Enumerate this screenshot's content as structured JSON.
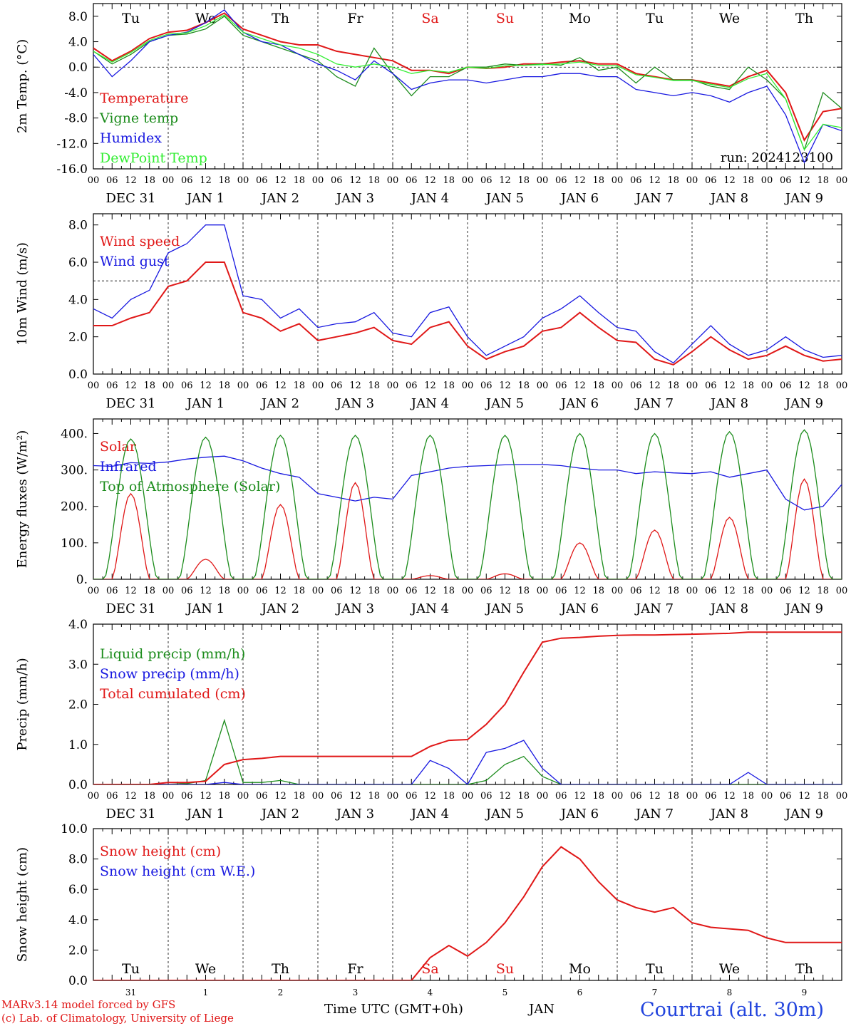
{
  "chart_data": [
    {
      "type": "line",
      "ylabel": "2m Temp. (°C)",
      "ylim": [
        -16,
        10
      ],
      "yticks": [
        "8.0",
        "4.0",
        "0.0",
        "-4.0",
        "-8.0",
        "-12.0",
        "-16.0"
      ],
      "ytick_values": [
        8,
        4,
        0,
        -4,
        -8,
        -12,
        -16
      ],
      "reference_line": 0,
      "weekday_labels": [
        "Tu",
        "We",
        "Th",
        "Fr",
        "Sa",
        "Su",
        "Mo",
        "Tu",
        "We",
        "Th"
      ],
      "weekday_colors": [
        "#000000",
        "#000000",
        "#000000",
        "#000000",
        "#e01818",
        "#e01818",
        "#000000",
        "#000000",
        "#000000",
        "#000000"
      ],
      "annotation": "run: 2024123100",
      "legend_position": "top-left",
      "x_hours": [
        0,
        6,
        12,
        18,
        24,
        30,
        36,
        42,
        48,
        54,
        60,
        66,
        72,
        78,
        84,
        90,
        96,
        102,
        108,
        114,
        120,
        126,
        132,
        138,
        144,
        150,
        156,
        162,
        168,
        174,
        180,
        186,
        192,
        198,
        204,
        210,
        216,
        222,
        228,
        234,
        240
      ],
      "series": [
        {
          "name": "Temperature",
          "color": "#e01818",
          "values": [
            3.0,
            1.0,
            2.5,
            4.5,
            5.5,
            5.8,
            7.0,
            8.5,
            6.0,
            5.0,
            4.0,
            3.5,
            3.5,
            2.5,
            2.0,
            1.5,
            1.0,
            -0.5,
            -0.5,
            -1.0,
            0.0,
            -0.2,
            0.0,
            0.5,
            0.5,
            0.8,
            1.0,
            0.5,
            0.5,
            -1.0,
            -1.5,
            -2.0,
            -2.0,
            -2.5,
            -3.0,
            -1.5,
            -0.5,
            -4.0,
            -11.5,
            -7.0,
            -6.5
          ]
        },
        {
          "name": "Vigne temp",
          "color": "#1c8c1c",
          "values": [
            2.5,
            0.5,
            2.0,
            4.0,
            5.0,
            5.2,
            6.0,
            8.0,
            5.0,
            4.0,
            3.0,
            2.0,
            1.0,
            -1.5,
            -3.0,
            3.0,
            -1.0,
            -4.5,
            -1.5,
            -1.5,
            0.0,
            0.0,
            0.5,
            0.3,
            0.5,
            0.3,
            1.5,
            -0.5,
            0.0,
            -2.5,
            0.0,
            -2.0,
            -2.0,
            -3.0,
            -3.5,
            0.0,
            -2.0,
            -5.0,
            -13.0,
            -4.0,
            -6.5
          ]
        },
        {
          "name": "Humidex",
          "color": "#1818e0",
          "values": [
            2.0,
            -1.5,
            1.0,
            4.0,
            5.0,
            5.5,
            7.0,
            9.0,
            5.5,
            4.0,
            3.5,
            2.0,
            0.5,
            -0.5,
            -2.0,
            1.0,
            -1.0,
            -3.5,
            -2.5,
            -2.0,
            -2.0,
            -2.5,
            -2.0,
            -1.5,
            -1.5,
            -1.0,
            -1.0,
            -1.5,
            -1.5,
            -3.5,
            -4.0,
            -4.5,
            -4.0,
            -4.5,
            -5.5,
            -4.0,
            -3.0,
            -7.5,
            -15.0,
            -9.0,
            -10.0
          ]
        },
        {
          "name": "DewPoint Temp",
          "color": "#33ee33",
          "values": [
            2.5,
            0.8,
            2.3,
            4.2,
            5.2,
            5.4,
            6.5,
            8.2,
            5.5,
            4.5,
            3.5,
            3.0,
            2.0,
            0.5,
            0.0,
            0.5,
            0.0,
            -1.0,
            -0.5,
            -0.8,
            0.0,
            -0.2,
            0.2,
            0.3,
            0.4,
            0.5,
            0.8,
            0.3,
            0.2,
            -1.2,
            -1.6,
            -2.1,
            -2.1,
            -2.7,
            -3.2,
            -1.8,
            -1.0,
            -5.0,
            -13.0,
            -9.0,
            -9.5
          ]
        }
      ]
    },
    {
      "type": "line",
      "ylabel": "10m Wind (m/s)",
      "ylim": [
        0,
        8.6
      ],
      "yticks": [
        "8.0",
        "6.0",
        "4.0",
        "2.0",
        "0.0"
      ],
      "ytick_values": [
        8,
        6,
        4,
        2,
        0
      ],
      "reference_line": 5,
      "legend_position": "top-left",
      "x_hours": [
        0,
        6,
        12,
        18,
        24,
        30,
        36,
        42,
        48,
        54,
        60,
        66,
        72,
        78,
        84,
        90,
        96,
        102,
        108,
        114,
        120,
        126,
        132,
        138,
        144,
        150,
        156,
        162,
        168,
        174,
        180,
        186,
        192,
        198,
        204,
        210,
        216,
        222,
        228,
        234,
        240
      ],
      "series": [
        {
          "name": "Wind speed",
          "color": "#e01818",
          "values": [
            2.6,
            2.6,
            3.0,
            3.3,
            4.7,
            5.0,
            6.0,
            6.0,
            3.3,
            3.0,
            2.3,
            2.7,
            1.8,
            2.0,
            2.2,
            2.5,
            1.8,
            1.6,
            2.5,
            2.8,
            1.5,
            0.8,
            1.2,
            1.5,
            2.3,
            2.5,
            3.3,
            2.5,
            1.8,
            1.7,
            0.8,
            0.5,
            1.2,
            2.0,
            1.3,
            0.8,
            1.0,
            1.5,
            1.0,
            0.7,
            0.8
          ]
        },
        {
          "name": "Wind gust",
          "color": "#1818e0",
          "values": [
            3.5,
            3.0,
            4.0,
            4.5,
            6.5,
            7.0,
            8.0,
            8.0,
            4.2,
            4.0,
            3.0,
            3.5,
            2.5,
            2.7,
            2.8,
            3.3,
            2.2,
            2.0,
            3.3,
            3.6,
            2.0,
            1.0,
            1.5,
            2.0,
            3.0,
            3.5,
            4.2,
            3.3,
            2.5,
            2.3,
            1.2,
            0.6,
            1.6,
            2.6,
            1.6,
            1.0,
            1.3,
            2.0,
            1.3,
            0.9,
            1.0
          ]
        }
      ]
    },
    {
      "type": "line",
      "ylabel": "Energy fluxes (W/m²)",
      "ylim": [
        0,
        440
      ],
      "yticks": [
        "400.",
        "300.",
        "200.",
        "100.",
        "0."
      ],
      "ytick_values": [
        400,
        300,
        200,
        100,
        0
      ],
      "legend_position": "top-left",
      "daily_peaks_solar": [
        235,
        55,
        205,
        265,
        10,
        15,
        100,
        135,
        170,
        275
      ],
      "daily_peaks_toa": [
        385,
        390,
        395,
        395,
        395,
        395,
        400,
        400,
        405,
        410
      ],
      "x_hours": [
        0,
        6,
        12,
        18,
        24,
        30,
        36,
        42,
        48,
        54,
        60,
        66,
        72,
        78,
        84,
        90,
        96,
        102,
        108,
        114,
        120,
        126,
        132,
        138,
        144,
        150,
        156,
        162,
        168,
        174,
        180,
        186,
        192,
        198,
        204,
        210,
        216,
        222,
        228,
        234,
        240
      ],
      "series": [
        {
          "name": "Solar",
          "color": "#e01818"
        },
        {
          "name": "Infrared",
          "color": "#1818e0",
          "values": [
            312,
            310,
            320,
            318,
            322,
            330,
            335,
            338,
            325,
            305,
            290,
            280,
            235,
            225,
            215,
            225,
            220,
            285,
            295,
            305,
            310,
            312,
            314,
            315,
            315,
            312,
            305,
            300,
            300,
            290,
            295,
            292,
            290,
            295,
            280,
            290,
            300,
            220,
            190,
            200,
            260
          ]
        },
        {
          "name": "Top of Atmosphere (Solar)",
          "color": "#1c8c1c"
        }
      ]
    },
    {
      "type": "line",
      "ylabel": "Precip (mm/h)",
      "ylim": [
        0,
        4
      ],
      "yticks": [
        "4.0",
        "3.0",
        "2.0",
        "1.0",
        "0.0"
      ],
      "ytick_values": [
        4,
        3,
        2,
        1,
        0
      ],
      "legend_position": "top-left",
      "x_hours": [
        0,
        6,
        12,
        18,
        24,
        30,
        36,
        42,
        48,
        54,
        60,
        66,
        72,
        78,
        84,
        90,
        96,
        102,
        108,
        114,
        120,
        126,
        132,
        138,
        144,
        150,
        156,
        162,
        168,
        174,
        180,
        186,
        192,
        198,
        204,
        210,
        216,
        222,
        228,
        234,
        240
      ],
      "series": [
        {
          "name": "Liquid precip (mm/h)",
          "color": "#1c8c1c",
          "values": [
            0,
            0,
            0,
            0,
            0.05,
            0.02,
            0.1,
            1.6,
            0.05,
            0.05,
            0.1,
            0,
            0,
            0,
            0,
            0,
            0,
            0,
            0,
            0,
            0,
            0.1,
            0.5,
            0.7,
            0.2,
            0,
            0,
            0,
            0,
            0,
            0,
            0,
            0,
            0,
            0,
            0,
            0,
            0,
            0,
            0,
            0
          ]
        },
        {
          "name": "Snow precip (mm/h)",
          "color": "#1818e0",
          "values": [
            0,
            0,
            0,
            0,
            0,
            0,
            0,
            0.05,
            0,
            0,
            0,
            0,
            0,
            0,
            0,
            0,
            0,
            0,
            0.6,
            0.4,
            0,
            0.8,
            0.9,
            1.1,
            0.4,
            0,
            0,
            0,
            0,
            0,
            0,
            0,
            0,
            0,
            0,
            0.3,
            0,
            0,
            0,
            0,
            0
          ]
        },
        {
          "name": "Total cumulated (cm)",
          "color": "#e01818",
          "values": [
            0,
            0,
            0,
            0,
            0.05,
            0.05,
            0.08,
            0.5,
            0.62,
            0.65,
            0.7,
            0.7,
            0.7,
            0.7,
            0.7,
            0.7,
            0.7,
            0.7,
            0.95,
            1.1,
            1.12,
            1.5,
            2.0,
            2.8,
            3.55,
            3.65,
            3.67,
            3.7,
            3.72,
            3.73,
            3.73,
            3.74,
            3.75,
            3.76,
            3.77,
            3.8,
            3.8,
            3.8,
            3.8,
            3.8,
            3.8
          ]
        }
      ]
    },
    {
      "type": "line",
      "ylabel": "Snow height (cm)",
      "ylim": [
        0,
        10
      ],
      "yticks": [
        "10.0",
        "8.0",
        "6.0",
        "4.0",
        "2.0",
        "0.0"
      ],
      "ytick_values": [
        10,
        8,
        6,
        4,
        2,
        0
      ],
      "legend_position": "top-left",
      "day_numbers": [
        "31",
        "1",
        "2",
        "3",
        "4",
        "5",
        "6",
        "7",
        "8",
        "9"
      ],
      "x_hours": [
        0,
        6,
        12,
        18,
        24,
        30,
        36,
        42,
        48,
        54,
        60,
        66,
        72,
        78,
        84,
        90,
        96,
        102,
        108,
        114,
        120,
        126,
        132,
        138,
        144,
        150,
        156,
        162,
        168,
        174,
        180,
        186,
        192,
        198,
        204,
        210,
        216,
        222,
        228,
        234,
        240
      ],
      "series": [
        {
          "name": "Snow height (cm)",
          "color": "#e01818",
          "values": [
            0,
            0,
            0,
            0,
            0,
            0,
            0,
            0,
            0,
            0,
            0,
            0,
            0,
            0,
            0,
            0,
            0,
            0,
            1.5,
            2.3,
            1.6,
            2.5,
            3.8,
            5.5,
            7.5,
            8.8,
            8.0,
            6.5,
            5.3,
            4.8,
            4.5,
            4.8,
            3.8,
            3.5,
            3.4,
            3.3,
            2.8,
            2.5,
            2.5,
            2.5,
            2.5
          ]
        },
        {
          "name": "Snow height (cm W.E.)",
          "color": "#1818e0"
        }
      ]
    }
  ],
  "x_axis": {
    "hour_ticks": [
      "00",
      "06",
      "12",
      "18"
    ],
    "end_tick": "00",
    "date_labels": [
      "DEC 31",
      "JAN  1",
      "JAN  2",
      "JAN  3",
      "JAN  4",
      "JAN  5",
      "JAN  6",
      "JAN  7",
      "JAN  8",
      "JAN  9"
    ]
  },
  "footer": {
    "credit_model": "MARv3.14 model forced by GFS",
    "credit_lab": "(c) Lab. of Climatology, University of Liege",
    "time_label": "Time UTC (GMT+0h)",
    "month_label": "JAN",
    "station": "Courtrai (alt. 30m)"
  }
}
